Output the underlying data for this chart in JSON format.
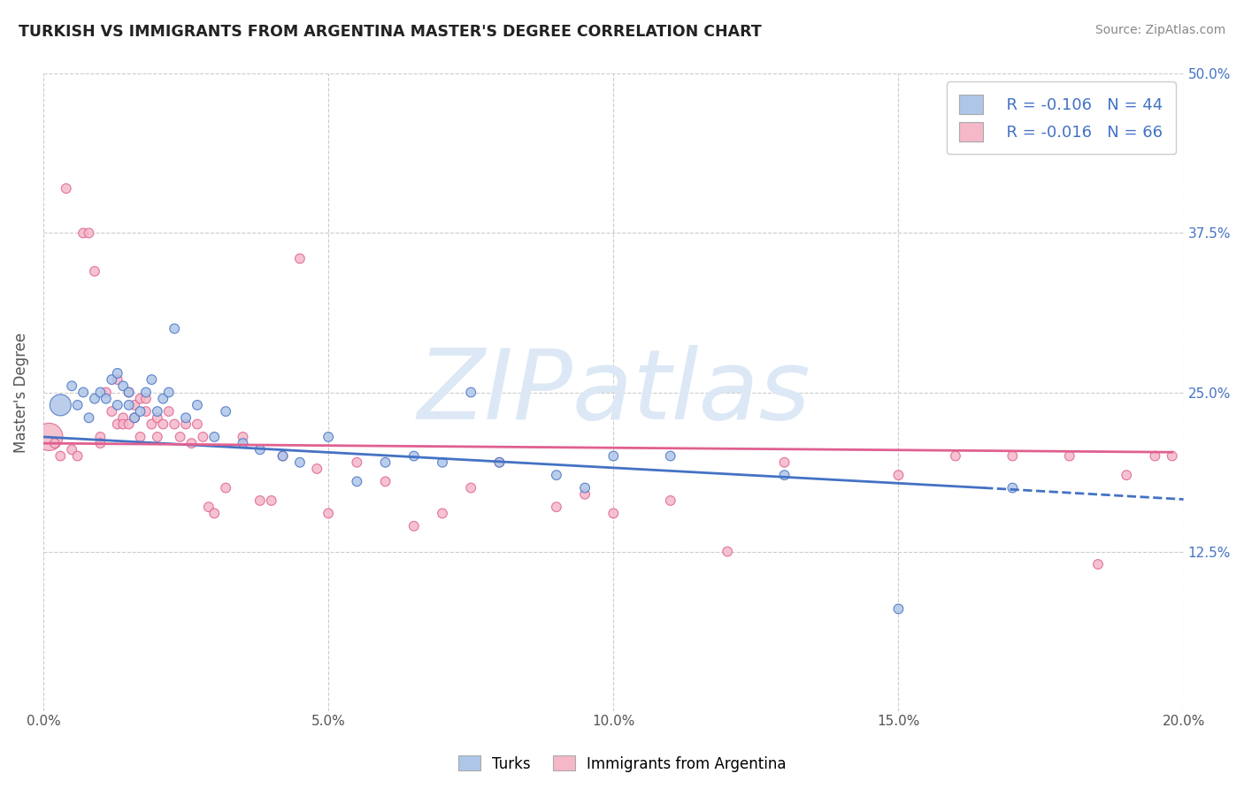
{
  "title": "TURKISH VS IMMIGRANTS FROM ARGENTINA MASTER'S DEGREE CORRELATION CHART",
  "source": "Source: ZipAtlas.com",
  "ylabel": "Master's Degree",
  "xlim": [
    0.0,
    0.2
  ],
  "ylim": [
    0.0,
    0.5
  ],
  "xticks": [
    0.0,
    0.05,
    0.1,
    0.15,
    0.2
  ],
  "xtick_labels": [
    "0.0%",
    "5.0%",
    "10.0%",
    "15.0%",
    "20.0%"
  ],
  "yticks": [
    0.0,
    0.125,
    0.25,
    0.375,
    0.5
  ],
  "ytick_labels": [
    "",
    "12.5%",
    "25.0%",
    "37.5%",
    "50.0%"
  ],
  "legend_blue_r": "R = -0.106",
  "legend_blue_n": "N = 44",
  "legend_pink_r": "R = -0.016",
  "legend_pink_n": "N = 66",
  "legend_label_blue": "Turks",
  "legend_label_pink": "Immigrants from Argentina",
  "blue_color": "#aec6e8",
  "pink_color": "#f4b8c8",
  "blue_line_color": "#4472c4",
  "pink_line_color": "#e06090",
  "watermark": "ZIPatlas",
  "watermark_color": "#dce8f5",
  "background_color": "#ffffff",
  "grid_color": "#cccccc",
  "blue_scatter_x": [
    0.003,
    0.005,
    0.006,
    0.007,
    0.008,
    0.009,
    0.01,
    0.011,
    0.012,
    0.013,
    0.013,
    0.014,
    0.015,
    0.015,
    0.016,
    0.017,
    0.018,
    0.019,
    0.02,
    0.021,
    0.022,
    0.023,
    0.025,
    0.027,
    0.03,
    0.032,
    0.035,
    0.038,
    0.042,
    0.045,
    0.05,
    0.055,
    0.06,
    0.065,
    0.07,
    0.075,
    0.08,
    0.09,
    0.095,
    0.1,
    0.11,
    0.13,
    0.15,
    0.17
  ],
  "blue_scatter_y": [
    0.24,
    0.255,
    0.24,
    0.25,
    0.23,
    0.245,
    0.25,
    0.245,
    0.26,
    0.265,
    0.24,
    0.255,
    0.25,
    0.24,
    0.23,
    0.235,
    0.25,
    0.26,
    0.235,
    0.245,
    0.25,
    0.3,
    0.23,
    0.24,
    0.215,
    0.235,
    0.21,
    0.205,
    0.2,
    0.195,
    0.215,
    0.18,
    0.195,
    0.2,
    0.195,
    0.25,
    0.195,
    0.185,
    0.175,
    0.2,
    0.2,
    0.185,
    0.08,
    0.175
  ],
  "blue_scatter_sizes": [
    300,
    60,
    60,
    60,
    60,
    60,
    60,
    60,
    60,
    60,
    60,
    60,
    60,
    60,
    60,
    60,
    60,
    60,
    60,
    60,
    60,
    60,
    60,
    60,
    60,
    60,
    60,
    60,
    60,
    60,
    60,
    60,
    60,
    60,
    60,
    60,
    60,
    60,
    60,
    60,
    60,
    60,
    60,
    60
  ],
  "pink_scatter_x": [
    0.001,
    0.002,
    0.003,
    0.004,
    0.005,
    0.006,
    0.007,
    0.008,
    0.009,
    0.01,
    0.01,
    0.011,
    0.012,
    0.013,
    0.013,
    0.014,
    0.014,
    0.015,
    0.015,
    0.016,
    0.016,
    0.017,
    0.017,
    0.018,
    0.018,
    0.019,
    0.02,
    0.02,
    0.021,
    0.022,
    0.023,
    0.024,
    0.025,
    0.026,
    0.027,
    0.028,
    0.029,
    0.03,
    0.032,
    0.035,
    0.038,
    0.04,
    0.042,
    0.045,
    0.048,
    0.05,
    0.055,
    0.06,
    0.065,
    0.07,
    0.075,
    0.08,
    0.09,
    0.095,
    0.1,
    0.11,
    0.12,
    0.13,
    0.15,
    0.16,
    0.17,
    0.18,
    0.185,
    0.19,
    0.195,
    0.198
  ],
  "pink_scatter_y": [
    0.215,
    0.21,
    0.2,
    0.41,
    0.205,
    0.2,
    0.375,
    0.375,
    0.345,
    0.215,
    0.21,
    0.25,
    0.235,
    0.26,
    0.225,
    0.23,
    0.225,
    0.25,
    0.225,
    0.23,
    0.24,
    0.245,
    0.215,
    0.235,
    0.245,
    0.225,
    0.23,
    0.215,
    0.225,
    0.235,
    0.225,
    0.215,
    0.225,
    0.21,
    0.225,
    0.215,
    0.16,
    0.155,
    0.175,
    0.215,
    0.165,
    0.165,
    0.2,
    0.355,
    0.19,
    0.155,
    0.195,
    0.18,
    0.145,
    0.155,
    0.175,
    0.195,
    0.16,
    0.17,
    0.155,
    0.165,
    0.125,
    0.195,
    0.185,
    0.2,
    0.2,
    0.2,
    0.115,
    0.185,
    0.2,
    0.2
  ],
  "pink_scatter_sizes": [
    500,
    60,
    60,
    60,
    60,
    60,
    60,
    60,
    60,
    60,
    60,
    60,
    60,
    60,
    60,
    60,
    60,
    60,
    60,
    60,
    60,
    60,
    60,
    60,
    60,
    60,
    60,
    60,
    60,
    60,
    60,
    60,
    60,
    60,
    60,
    60,
    60,
    60,
    60,
    60,
    60,
    60,
    60,
    60,
    60,
    60,
    60,
    60,
    60,
    60,
    60,
    60,
    60,
    60,
    60,
    60,
    60,
    60,
    60,
    60,
    60,
    60,
    60,
    60,
    60,
    60
  ],
  "blue_trendline_x0": 0.0,
  "blue_trendline_y0": 0.215,
  "blue_trendline_x1": 0.165,
  "blue_trendline_y1": 0.175,
  "blue_trendline_dash_x0": 0.165,
  "blue_trendline_dash_x1": 0.2,
  "blue_trendline_dash_y0": 0.175,
  "blue_trendline_dash_y1": 0.166,
  "pink_trendline_x0": 0.0,
  "pink_trendline_y0": 0.21,
  "pink_trendline_x1": 0.198,
  "pink_trendline_y1": 0.203
}
